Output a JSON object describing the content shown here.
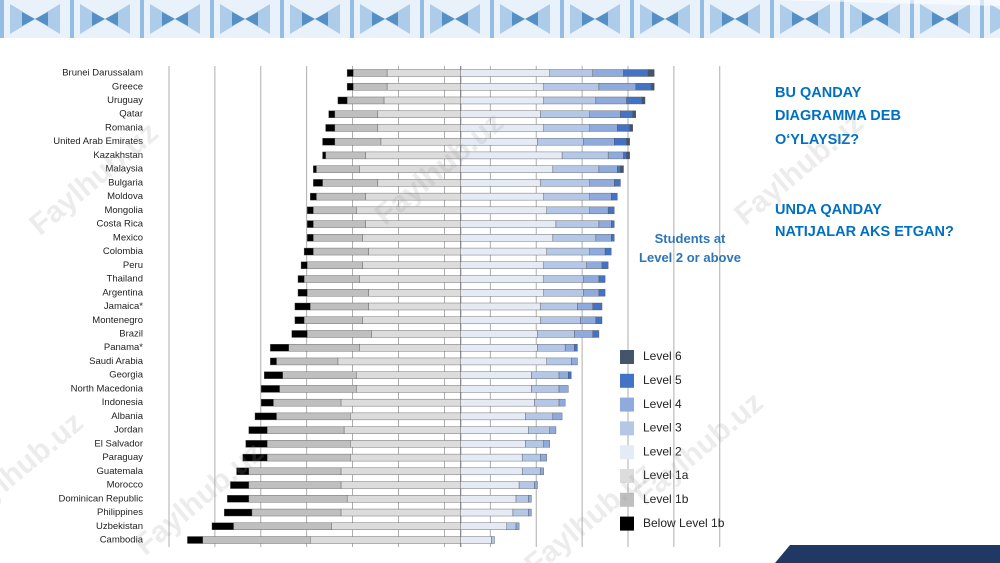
{
  "chart_data": {
    "type": "diverging-bar",
    "categories": [
      "Brunei Darussalam",
      "Greece",
      "Uruguay",
      "Qatar",
      "Romania",
      "United Arab Emirates",
      "Kazakhstan",
      "Malaysia",
      "Bulgaria",
      "Moldova",
      "Mongolia",
      "Costa Rica",
      "Mexico",
      "Colombia",
      "Peru",
      "Thailand",
      "Argentina",
      "Jamaica*",
      "Montenegro",
      "Brazil",
      "Panama*",
      "Saudi Arabia",
      "Georgia",
      "North Macedonia",
      "Indonesia",
      "Albania",
      "Jordan",
      "El Salvador",
      "Paraguay",
      "Guatemala",
      "Morocco",
      "Dominican Republic",
      "Philippines",
      "Uzbekistan",
      "Cambodia"
    ],
    "xlim": [
      -95,
      88
    ],
    "annotation": "Students at Level 2 or above",
    "series": [
      {
        "name": "Below Level 1b",
        "color": "#000000",
        "side": "left",
        "values": [
          2,
          2,
          3,
          2,
          3,
          4,
          1,
          1,
          3,
          2,
          2,
          2,
          2,
          3,
          2,
          2,
          3,
          5,
          3,
          5,
          6,
          2,
          6,
          6,
          4,
          7,
          6,
          7,
          8,
          4,
          6,
          7,
          9,
          7,
          5
        ]
      },
      {
        "name": "Level 1b",
        "color": "#bfbfbf",
        "side": "left",
        "values": [
          11,
          11,
          12,
          14,
          14,
          15,
          13,
          14,
          18,
          16,
          14,
          17,
          16,
          18,
          18,
          18,
          20,
          19,
          19,
          21,
          23,
          20,
          24,
          25,
          22,
          24,
          25,
          27,
          27,
          30,
          30,
          32,
          29,
          32,
          35
        ]
      },
      {
        "name": "Level 1a",
        "color": "#dcdcdc",
        "side": "left",
        "values": [
          24,
          24,
          25,
          27,
          27,
          26,
          31,
          33,
          27,
          31,
          34,
          31,
          32,
          30,
          32,
          33,
          30,
          30,
          32,
          29,
          33,
          40,
          34,
          34,
          39,
          36,
          38,
          36,
          36,
          39,
          39,
          37,
          39,
          42,
          49
        ]
      },
      {
        "name": "Level 2",
        "color": "#e4ebf5",
        "side": "right",
        "values": [
          29,
          27,
          27,
          26,
          27,
          25,
          33,
          30,
          26,
          27,
          28,
          31,
          30,
          28,
          27,
          27,
          27,
          26,
          26,
          25,
          25,
          28,
          23,
          23,
          24,
          21,
          22,
          21,
          20,
          20,
          19,
          18,
          17,
          15,
          10
        ]
      },
      {
        "name": "Level 3",
        "color": "#b4c7e7",
        "side": "right",
        "values": [
          14,
          18,
          17,
          16,
          15,
          15,
          15,
          15,
          16,
          15,
          14,
          14,
          14,
          14,
          14,
          13,
          13,
          12,
          13,
          12,
          9,
          8,
          9,
          9,
          8,
          9,
          7,
          6,
          6,
          6,
          5,
          4,
          5,
          3,
          1
        ]
      },
      {
        "name": "Level 4",
        "color": "#8faadc",
        "side": "right",
        "values": [
          10,
          12,
          10,
          10,
          9,
          10,
          5,
          6,
          8,
          7,
          6,
          4,
          5,
          5,
          5,
          5,
          5,
          5,
          5,
          6,
          3,
          2,
          3,
          3,
          2,
          3,
          2,
          2,
          2,
          1,
          1,
          1,
          1,
          1,
          0
        ]
      },
      {
        "name": "Level 5",
        "color": "#4472c4",
        "side": "right",
        "values": [
          8,
          5,
          5,
          4,
          4,
          4,
          1,
          1,
          2,
          2,
          2,
          1,
          1,
          2,
          2,
          2,
          2,
          3,
          2,
          2,
          1,
          0,
          1,
          0,
          0,
          0,
          0,
          0,
          0,
          0,
          0,
          0,
          0,
          0,
          0
        ]
      },
      {
        "name": "Level 6",
        "color": "#44546a",
        "side": "right",
        "values": [
          2,
          1,
          1,
          1,
          1,
          1,
          1,
          1,
          0,
          0,
          0,
          0,
          0,
          0,
          0,
          0,
          0,
          0,
          0,
          0,
          0,
          0,
          0,
          0,
          0,
          0,
          0,
          0,
          0,
          0,
          0,
          0,
          0,
          0,
          0
        ]
      }
    ]
  },
  "questions": [
    [
      "BU QANDAY",
      "DIAGRAMMA DEB",
      "O‘YLAYSIZ?"
    ],
    [
      " UNDA QANDAY",
      "NATIJALAR AKS ETGAN?"
    ]
  ],
  "watermark": "Faylhub.uz"
}
